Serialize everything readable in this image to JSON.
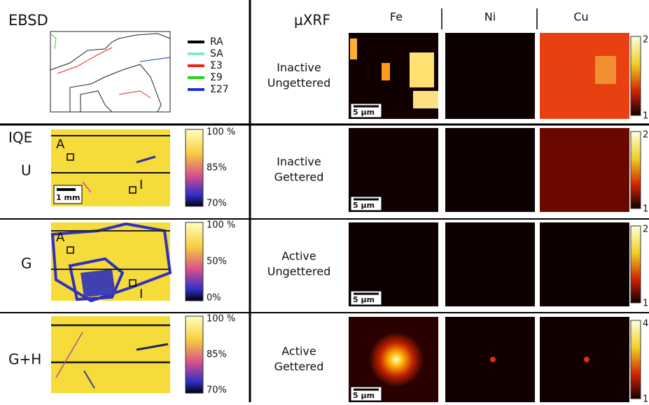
{
  "ebsd": {
    "title": "EBSD",
    "legend": [
      {
        "label": "RA",
        "color": "#000000"
      },
      {
        "label": "SA",
        "color": "#7fe8d0"
      },
      {
        "label": "Σ3",
        "color": "#e8261c"
      },
      {
        "label": "Σ9",
        "color": "#22d41c"
      },
      {
        "label": "Σ27",
        "color": "#1c2ee0"
      }
    ]
  },
  "xrf": {
    "title": "μXRF",
    "elements": [
      "Fe",
      "Ni",
      "Cu"
    ],
    "rows": [
      {
        "label": [
          "Inactive",
          "Ungettered"
        ],
        "scale_bar": "5 μm",
        "colorbar": [
          "2",
          "1"
        ]
      },
      {
        "label": [
          "Inactive",
          "Gettered"
        ],
        "scale_bar": "5 μm",
        "colorbar": [
          "2",
          "1"
        ]
      },
      {
        "label": [
          "Active",
          "Ungettered"
        ],
        "scale_bar": "5 μm",
        "colorbar": [
          "2",
          "1"
        ]
      },
      {
        "label": [
          "Active",
          "Gettered"
        ],
        "scale_bar": "5 μm",
        "colorbar": [
          "4",
          "1"
        ]
      }
    ]
  },
  "iqe": {
    "label": "IQE",
    "rows": [
      {
        "label": "U",
        "ticks": [
          "100 %",
          "85%",
          "70%"
        ],
        "markers": [
          "A",
          "I"
        ],
        "scale_bar": "1 mm"
      },
      {
        "label": "G",
        "ticks": [
          "100 %",
          "50%",
          "0%"
        ],
        "markers": [
          "A",
          "I"
        ]
      },
      {
        "label": "G+H",
        "ticks": [
          "100 %",
          "85%",
          "70%"
        ]
      }
    ]
  }
}
